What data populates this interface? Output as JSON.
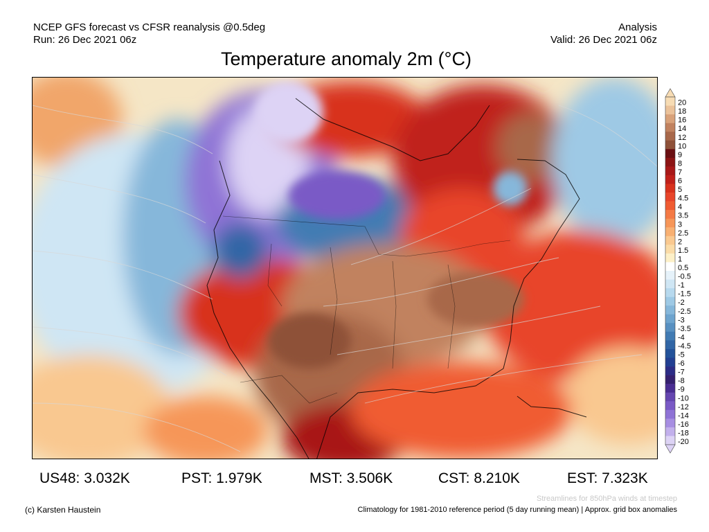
{
  "header": {
    "line1_left": "NCEP GFS forecast vs CFSR reanalysis @0.5deg",
    "line2_left": "Run: 26 Dec 2021 06z",
    "line1_right": "Analysis",
    "line2_right": "Valid: 26 Dec 2021 06z"
  },
  "title": "Temperature anomaly 2m (°C)",
  "legend": {
    "labels": [
      "20",
      "18",
      "16",
      "14",
      "12",
      "10",
      "9",
      "8",
      "7",
      "6",
      "5",
      "4.5",
      "4",
      "3.5",
      "3",
      "2.5",
      "2",
      "1.5",
      "1",
      "0.5",
      "-0.5",
      "-1",
      "-1.5",
      "-2",
      "-2.5",
      "-3",
      "-3.5",
      "-4",
      "-4.5",
      "-5",
      "-6",
      "-7",
      "-8",
      "-9",
      "-10",
      "-12",
      "-14",
      "-16",
      "-18",
      "-20"
    ],
    "colors": [
      "#f7dcb4",
      "#ebc29a",
      "#d9a27a",
      "#c1825f",
      "#a8684a",
      "#8e5138",
      "#6a0f12",
      "#8c1414",
      "#a81818",
      "#c0201a",
      "#d8321d",
      "#e8452a",
      "#f05c32",
      "#f47a45",
      "#f69658",
      "#f8b072",
      "#fac990",
      "#fbdca8",
      "#fdf0c8",
      "#ffffff",
      "#e6f2fa",
      "#cfe6f4",
      "#b7d9ee",
      "#9ec9e5",
      "#86b7da",
      "#6ea4ce",
      "#5890c1",
      "#427bb3",
      "#3166a6",
      "#23529a",
      "#223f92",
      "#2c2c86",
      "#35206f",
      "#4a2d92",
      "#6546b0",
      "#7a5ac6",
      "#8f73d6",
      "#a78ee2",
      "#c2b0ec",
      "#ddd3f5"
    ]
  },
  "stats": [
    {
      "label": "US48: 3.032K"
    },
    {
      "label": "PST: 1.979K"
    },
    {
      "label": "MST: 3.506K"
    },
    {
      "label": "CST: 8.210K"
    },
    {
      "label": "EST: 7.323K"
    }
  ],
  "footer": {
    "credit": "(c) Karsten Haustein",
    "streamlines_note": "Streamlines for 850hPa winds at timestep",
    "climatology_note": "Climatology for 1981-2010 reference period (5 day running mean) | Approx. grid box anomalies"
  }
}
